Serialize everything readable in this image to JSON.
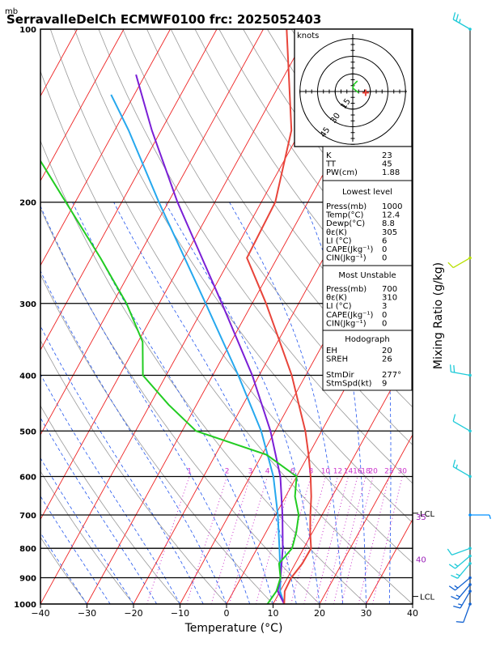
{
  "header": {
    "title": "SerravalleDelCh ECMWF0100 frc: 2025052403",
    "pressure_unit": "mb"
  },
  "chart_data": {
    "type": "skew-t",
    "x_axis": {
      "label": "Temperature (°C)",
      "ticks": [
        -40,
        -30,
        -20,
        -10,
        0,
        10,
        20,
        30,
        40
      ],
      "range": [
        -40,
        40
      ]
    },
    "y_axis": {
      "ticks": [
        100,
        200,
        300,
        400,
        500,
        600,
        700,
        800,
        900,
        1000
      ],
      "range": [
        1000,
        100
      ],
      "scale": "log"
    },
    "right_axis_label": "Mixing Ratio (g/kg)",
    "mixing_ratio_labels": [
      "1",
      "2",
      "3",
      "4",
      "6",
      "8",
      "10",
      "12",
      "14",
      "16",
      "18",
      "20",
      "25",
      "30"
    ],
    "temperature_profile": [
      {
        "p": 1000,
        "t": 12.4
      },
      {
        "p": 950,
        "t": 11.0
      },
      {
        "p": 900,
        "t": 10.8
      },
      {
        "p": 850,
        "t": 11.5
      },
      {
        "p": 800,
        "t": 11.6
      },
      {
        "p": 750,
        "t": 9.5
      },
      {
        "p": 700,
        "t": 7.5
      },
      {
        "p": 650,
        "t": 5.5
      },
      {
        "p": 600,
        "t": 3.0
      },
      {
        "p": 550,
        "t": 0.0
      },
      {
        "p": 500,
        "t": -3.5
      },
      {
        "p": 450,
        "t": -8.0
      },
      {
        "p": 400,
        "t": -13.0
      },
      {
        "p": 350,
        "t": -19.5
      },
      {
        "p": 300,
        "t": -27.0
      },
      {
        "p": 250,
        "t": -36.5
      },
      {
        "p": 200,
        "t": -37.0
      },
      {
        "p": 150,
        "t": -42.0
      },
      {
        "p": 100,
        "t": -55.0
      }
    ],
    "dewpoint_profile": [
      {
        "p": 1000,
        "t": 8.8
      },
      {
        "p": 950,
        "t": 9.2
      },
      {
        "p": 900,
        "t": 8.5
      },
      {
        "p": 850,
        "t": 6.5
      },
      {
        "p": 800,
        "t": 7.5
      },
      {
        "p": 750,
        "t": 6.5
      },
      {
        "p": 700,
        "t": 5.0
      },
      {
        "p": 650,
        "t": 2.0
      },
      {
        "p": 600,
        "t": 0.0
      },
      {
        "p": 550,
        "t": -9.0
      },
      {
        "p": 500,
        "t": -27.0
      },
      {
        "p": 450,
        "t": -36.0
      },
      {
        "p": 400,
        "t": -45.0
      },
      {
        "p": 350,
        "t": -49.0
      },
      {
        "p": 300,
        "t": -57.0
      },
      {
        "p": 250,
        "t": -68.0
      },
      {
        "p": 200,
        "t": -82.0
      },
      {
        "p": 150,
        "t": -100.0
      },
      {
        "p": 100,
        "t": -126.0
      }
    ],
    "parcel_profile_violet": [
      {
        "p": 1000,
        "t": 12.4
      },
      {
        "p": 950,
        "t": 9.5
      },
      {
        "p": 900,
        "t": 8.5
      },
      {
        "p": 800,
        "t": 5.5
      },
      {
        "p": 700,
        "t": 1.5
      },
      {
        "p": 600,
        "t": -3.5
      },
      {
        "p": 500,
        "t": -11.0
      },
      {
        "p": 400,
        "t": -21.5
      },
      {
        "p": 300,
        "t": -36.5
      },
      {
        "p": 200,
        "t": -58.0
      },
      {
        "p": 150,
        "t": -72.0
      },
      {
        "p": 120,
        "t": -82.0
      }
    ],
    "parcel_profile_cyan": [
      {
        "p": 1000,
        "t": 12.4
      },
      {
        "p": 950,
        "t": 10.0
      },
      {
        "p": 900,
        "t": 8.5
      },
      {
        "p": 800,
        "t": 4.8
      },
      {
        "p": 700,
        "t": 0.5
      },
      {
        "p": 600,
        "t": -5.0
      },
      {
        "p": 500,
        "t": -13.0
      },
      {
        "p": 400,
        "t": -24.5
      },
      {
        "p": 300,
        "t": -40.0
      },
      {
        "p": 200,
        "t": -62.0
      },
      {
        "p": 150,
        "t": -77.0
      },
      {
        "p": 130,
        "t": -85.0
      }
    ],
    "lcl_markers": [
      {
        "label": "LCL",
        "p": 695
      },
      {
        "label": "LCL",
        "p": 970
      }
    ],
    "theta_e_labels": [
      {
        "label": "35",
        "p": 700
      },
      {
        "label": "40",
        "p": 830
      }
    ],
    "wind_barbs": [
      {
        "p": 100,
        "dir": 300,
        "spd": 25,
        "color": "#1ecad8"
      },
      {
        "p": 250,
        "dir": 240,
        "spd": 10,
        "color": "#b7e000"
      },
      {
        "p": 400,
        "dir": 280,
        "spd": 20,
        "color": "#1ecad8"
      },
      {
        "p": 500,
        "dir": 300,
        "spd": 10,
        "color": "#1ecad8"
      },
      {
        "p": 600,
        "dir": 300,
        "spd": 15,
        "color": "#1ecad8"
      },
      {
        "p": 700,
        "dir": 90,
        "spd": 5,
        "color": "#0090ff"
      },
      {
        "p": 800,
        "dir": 250,
        "spd": 10,
        "color": "#1ecad8"
      },
      {
        "p": 825,
        "dir": 230,
        "spd": 15,
        "color": "#1ecad8"
      },
      {
        "p": 850,
        "dir": 220,
        "spd": 15,
        "color": "#1ecad8"
      },
      {
        "p": 900,
        "dir": 230,
        "spd": 15,
        "color": "#1060d0"
      },
      {
        "p": 925,
        "dir": 220,
        "spd": 15,
        "color": "#1060d0"
      },
      {
        "p": 950,
        "dir": 210,
        "spd": 15,
        "color": "#1060d0"
      },
      {
        "p": 1000,
        "dir": 200,
        "spd": 10,
        "color": "#1060d0"
      }
    ],
    "hodograph": {
      "unit_label": "knots",
      "ring_labels": [
        "15",
        "30",
        "45"
      ],
      "trace": [
        [
          4,
          -9
        ],
        [
          1,
          -6
        ],
        [
          0,
          -3
        ],
        [
          5,
          1
        ]
      ],
      "storm_marker": [
        11,
        1
      ]
    },
    "indices": {
      "basic": [
        {
          "label": "K",
          "value": "23"
        },
        {
          "label": "TT",
          "value": "45"
        },
        {
          "label": "PW(cm)",
          "value": "1.88"
        }
      ],
      "lowest_level": {
        "title": "Lowest level",
        "rows": [
          {
            "label": "Press(mb)",
            "value": "1000"
          },
          {
            "label": "Temp(°C)",
            "value": "12.4"
          },
          {
            "label": "Dewp(°C)",
            "value": "8.8"
          },
          {
            "label": "θε(K)",
            "value": "305"
          },
          {
            "label": "LI (°C)",
            "value": "6"
          },
          {
            "label": "CAPE(Jkg⁻¹)",
            "value": "0"
          },
          {
            "label": "CIN(Jkg⁻¹)",
            "value": "0"
          }
        ]
      },
      "most_unstable": {
        "title": "Most Unstable",
        "rows": [
          {
            "label": "Press(mb)",
            "value": "700"
          },
          {
            "label": "θε(K)",
            "value": "310"
          },
          {
            "label": "LI (°C)",
            "value": "3"
          },
          {
            "label": "CAPE(Jkg⁻¹)",
            "value": "0"
          },
          {
            "label": "CIN(Jkg⁻¹)",
            "value": "0"
          }
        ]
      },
      "hodograph_block": {
        "title": "Hodograph",
        "rows": [
          {
            "label": "EH",
            "value": "20"
          },
          {
            "label": "SREH",
            "value": "26"
          },
          {
            "label": "StmDir",
            "value": "277°"
          },
          {
            "label": "StmSpd(kt)",
            "value": "9"
          }
        ]
      }
    },
    "colors": {
      "temperature": "#e8443a",
      "dewpoint": "#22cc22",
      "parcel_violet": "#7a1fd6",
      "parcel_cyan": "#26a8ee",
      "isotherm": "#ee2222",
      "dry_adiabat": "#999999",
      "moist_adiabat": "#2255ee",
      "mixing_ratio": "#cc33cc",
      "frame": "#000000"
    }
  }
}
